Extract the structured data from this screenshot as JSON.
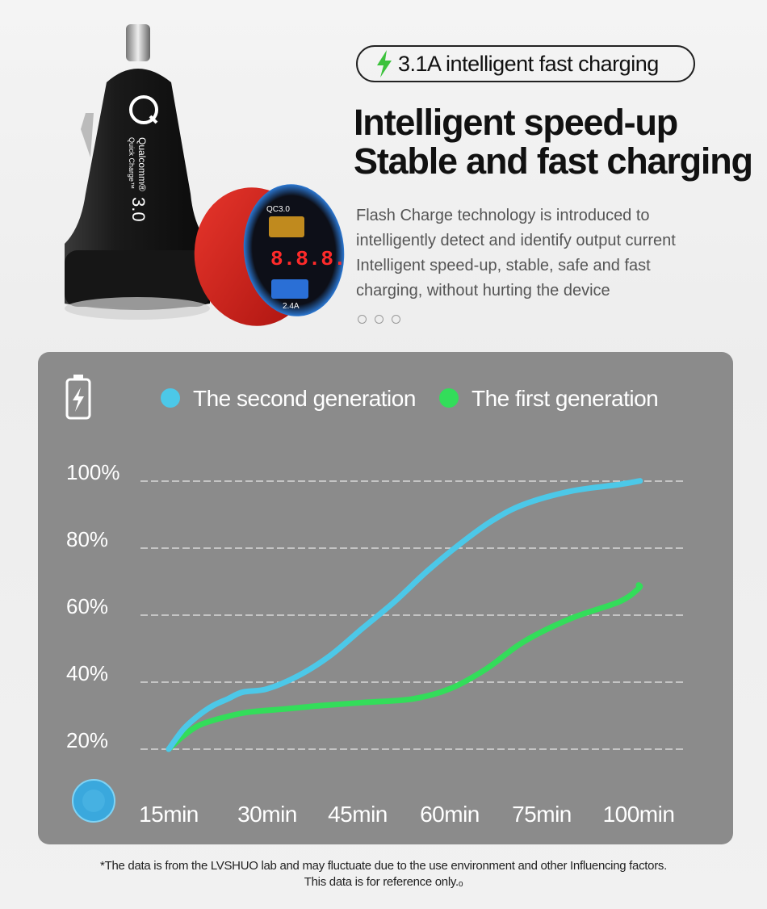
{
  "hero": {
    "badge_text": "3.1A intelligent fast charging",
    "headline": [
      "Intelligent speed-up",
      "Stable and fast charging"
    ],
    "description": [
      "Flash Charge technology is introduced to",
      "intelligently detect and identify output current",
      "Intelligent speed-up, stable, safe and fast",
      "charging, without hurting the device"
    ],
    "product_labels": {
      "brand": "Qualcomm®",
      "line": "Quick Charge™",
      "version": "3.0",
      "port_label": "QC3.0",
      "display": "8.8.8.",
      "amp_label": "2.4A"
    },
    "accent_color": "#3cc23c"
  },
  "chart_data": {
    "type": "line",
    "categories": [
      "15min",
      "30min",
      "45min",
      "60min",
      "75min",
      "100min"
    ],
    "y_tick_labels": [
      "100%",
      "80%",
      "60%",
      "40%",
      "20%"
    ],
    "y_ticks": [
      100,
      80,
      60,
      40,
      20
    ],
    "ylim": [
      20,
      100
    ],
    "grid": true,
    "legend_position": "top",
    "series": [
      {
        "name": "The second generation",
        "color": "#4cc8e8",
        "x": [
          0,
          0.15,
          0.3,
          0.45,
          0.6,
          0.75,
          1.0,
          1.35,
          1.7,
          2.05,
          2.4,
          2.75,
          3.1,
          3.45,
          3.8,
          4.3,
          4.8,
          5.3,
          5.8
        ],
        "values": [
          20,
          26,
          30,
          33,
          35,
          37,
          38,
          42,
          48,
          56,
          64,
          73,
          81,
          88,
          93,
          97,
          99,
          100,
          100
        ]
      },
      {
        "name": "The first generation",
        "color": "#33dd5a",
        "x": [
          0,
          0.15,
          0.3,
          0.5,
          0.8,
          1.2,
          1.6,
          2.1,
          2.6,
          3.0,
          3.4,
          3.8,
          4.3,
          4.8,
          5.3,
          5.8
        ],
        "values": [
          20,
          24,
          27,
          29,
          31,
          32,
          33,
          34,
          35,
          38,
          44,
          52,
          59,
          64,
          68,
          69
        ]
      }
    ]
  },
  "footnote": [
    "*The data is from the LVSHUO lab and may fluctuate due to the use environment and other Influencing factors.",
    "This data is for reference only.ₒ"
  ]
}
